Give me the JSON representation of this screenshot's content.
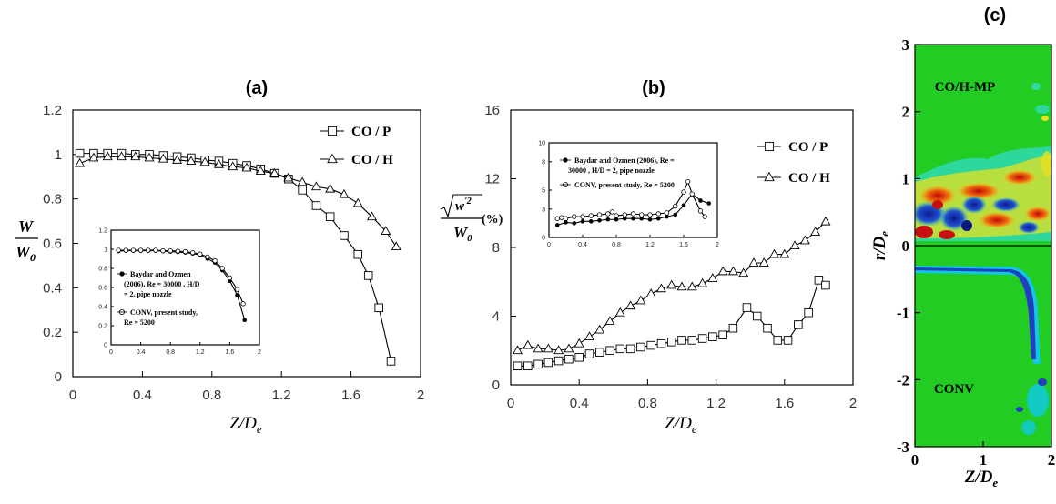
{
  "panels": {
    "a": "(a)",
    "b": "(b)",
    "c": "(c)"
  },
  "chart_data": [
    {
      "type": "line",
      "title": "(a)",
      "xlabel": "Z/De",
      "ylabel": "W/W0",
      "xlim": [
        0,
        2
      ],
      "ylim": [
        0,
        1.2
      ],
      "xticks": [
        "0",
        "0.4",
        "0.8",
        "1.2",
        "1.6",
        "2"
      ],
      "yticks": [
        "0",
        "0.2",
        "0.4",
        "0.6",
        "0.8",
        "1",
        "1.2"
      ],
      "legend_position": "top-right",
      "series": [
        {
          "name": "CO / P",
          "marker": "square",
          "x": [
            0.04,
            0.12,
            0.2,
            0.28,
            0.36,
            0.44,
            0.52,
            0.6,
            0.68,
            0.76,
            0.84,
            0.92,
            1.0,
            1.08,
            1.16,
            1.24,
            1.32,
            1.4,
            1.48,
            1.56,
            1.64,
            1.7,
            1.76,
            1.83
          ],
          "y": [
            1.005,
            1.005,
            1.005,
            1.005,
            1.0,
            1.0,
            0.995,
            0.99,
            0.985,
            0.975,
            0.97,
            0.96,
            0.95,
            0.935,
            0.915,
            0.89,
            0.84,
            0.77,
            0.72,
            0.635,
            0.55,
            0.455,
            0.31,
            0.07
          ]
        },
        {
          "name": "CO / H",
          "marker": "triangle",
          "x": [
            0.04,
            0.12,
            0.2,
            0.28,
            0.36,
            0.44,
            0.52,
            0.6,
            0.68,
            0.76,
            0.84,
            0.92,
            1.0,
            1.08,
            1.16,
            1.24,
            1.32,
            1.4,
            1.48,
            1.56,
            1.64,
            1.72,
            1.8,
            1.86
          ],
          "y": [
            0.96,
            0.985,
            0.99,
            0.99,
            0.99,
            0.985,
            0.98,
            0.975,
            0.97,
            0.965,
            0.955,
            0.945,
            0.94,
            0.925,
            0.915,
            0.895,
            0.875,
            0.855,
            0.845,
            0.82,
            0.78,
            0.72,
            0.655,
            0.585
          ]
        }
      ],
      "inset": {
        "xlim": [
          0,
          2
        ],
        "ylim": [
          0,
          1.2
        ],
        "xticks": [
          "0",
          "0.4",
          "0.8",
          "1.2",
          "1.6",
          "2"
        ],
        "yticks": [
          "0",
          "0.2",
          "0.4",
          "0.6",
          "0.8",
          "1",
          "1.2"
        ],
        "series": [
          {
            "name": "Baydar and Ozmen (2006), Re = 30000 ,  H/D = 2, pipe nozzle",
            "marker": "filled-circle",
            "x": [
              0.1,
              0.2,
              0.3,
              0.4,
              0.5,
              0.6,
              0.7,
              0.8,
              0.9,
              1.0,
              1.1,
              1.2,
              1.3,
              1.4,
              1.5,
              1.6,
              1.7,
              1.8
            ],
            "y": [
              0.98,
              0.985,
              0.985,
              0.985,
              0.985,
              0.985,
              0.98,
              0.975,
              0.97,
              0.965,
              0.955,
              0.94,
              0.9,
              0.86,
              0.78,
              0.67,
              0.52,
              0.26
            ]
          },
          {
            "name": "CONV, present study, Re = 5200",
            "marker": "open-circle",
            "x": [
              0.1,
              0.2,
              0.3,
              0.4,
              0.5,
              0.6,
              0.7,
              0.8,
              0.9,
              1.0,
              1.1,
              1.2,
              1.3,
              1.4,
              1.5,
              1.6,
              1.7,
              1.78
            ],
            "y": [
              0.99,
              0.99,
              0.99,
              0.99,
              0.99,
              0.99,
              0.985,
              0.985,
              0.98,
              0.975,
              0.965,
              0.95,
              0.92,
              0.88,
              0.8,
              0.7,
              0.58,
              0.43
            ]
          }
        ]
      }
    },
    {
      "type": "line",
      "title": "(b)",
      "xlabel": "Z/De",
      "ylabel": "√w'² / W0 (%)",
      "xlim": [
        0,
        2
      ],
      "ylim": [
        0,
        16
      ],
      "xticks": [
        "0",
        "0.4",
        "0.8",
        "1.2",
        "1.6",
        "2"
      ],
      "yticks": [
        "0",
        "4",
        "8",
        "12",
        "16"
      ],
      "legend_position": "right",
      "series": [
        {
          "name": "CO / P",
          "marker": "square",
          "x": [
            0.04,
            0.1,
            0.16,
            0.22,
            0.28,
            0.34,
            0.4,
            0.46,
            0.52,
            0.58,
            0.64,
            0.7,
            0.76,
            0.82,
            0.88,
            0.94,
            1.0,
            1.06,
            1.12,
            1.18,
            1.24,
            1.3,
            1.38,
            1.44,
            1.5,
            1.56,
            1.62,
            1.68,
            1.74,
            1.8,
            1.84
          ],
          "y": [
            1.1,
            1.1,
            1.2,
            1.3,
            1.4,
            1.5,
            1.6,
            1.8,
            1.9,
            2.0,
            2.1,
            2.1,
            2.2,
            2.3,
            2.4,
            2.5,
            2.6,
            2.6,
            2.7,
            2.8,
            2.9,
            3.3,
            4.5,
            4.0,
            3.3,
            2.6,
            2.6,
            3.5,
            4.2,
            6.1,
            5.8
          ]
        },
        {
          "name": "CO / H",
          "marker": "triangle",
          "x": [
            0.04,
            0.1,
            0.16,
            0.22,
            0.28,
            0.34,
            0.4,
            0.46,
            0.52,
            0.58,
            0.64,
            0.7,
            0.76,
            0.82,
            0.88,
            0.94,
            1.0,
            1.06,
            1.12,
            1.18,
            1.24,
            1.3,
            1.36,
            1.42,
            1.48,
            1.54,
            1.6,
            1.66,
            1.72,
            1.78,
            1.84
          ],
          "y": [
            2.0,
            2.3,
            2.1,
            2.1,
            2.0,
            2.1,
            2.4,
            2.8,
            3.2,
            3.7,
            4.2,
            4.6,
            4.9,
            5.3,
            5.6,
            5.8,
            5.7,
            5.7,
            5.9,
            6.2,
            6.6,
            6.6,
            6.5,
            7.1,
            7.1,
            7.6,
            7.6,
            8.1,
            8.4,
            8.9,
            9.5
          ]
        }
      ],
      "inset": {
        "xlim": [
          0,
          2
        ],
        "ylim": [
          0,
          10
        ],
        "xticks": [
          "0",
          "0.4",
          "0.8",
          "1.2",
          "1.6",
          "2"
        ],
        "yticks": [
          "0",
          "3",
          "5",
          "8",
          "10"
        ],
        "series": [
          {
            "name": "Baydar and Ozmen (2006), Re = 30000 ,  H/D = 2, pipe nozzle",
            "marker": "filled-circle",
            "x": [
              0.1,
              0.2,
              0.3,
              0.4,
              0.5,
              0.6,
              0.7,
              0.8,
              0.9,
              1.0,
              1.1,
              1.2,
              1.3,
              1.4,
              1.5,
              1.6,
              1.7,
              1.8,
              1.9
            ],
            "y": [
              1.3,
              1.6,
              1.5,
              1.7,
              1.7,
              1.8,
              1.9,
              1.9,
              2.0,
              2.0,
              2.0,
              1.9,
              2.0,
              2.2,
              2.4,
              3.4,
              4.6,
              3.9,
              3.6
            ]
          },
          {
            "name": "CONV, present study, Re = 5200",
            "marker": "open-circle",
            "x": [
              0.1,
              0.15,
              0.2,
              0.3,
              0.4,
              0.5,
              0.6,
              0.7,
              0.75,
              0.8,
              0.9,
              1.0,
              1.1,
              1.2,
              1.3,
              1.4,
              1.5,
              1.6,
              1.65,
              1.7,
              1.8,
              1.85
            ],
            "y": [
              2.0,
              2.1,
              2.0,
              2.2,
              2.2,
              2.3,
              2.4,
              2.5,
              2.7,
              2.3,
              2.4,
              2.5,
              2.4,
              2.4,
              2.5,
              2.6,
              3.3,
              4.8,
              5.9,
              4.6,
              2.8,
              2.2
            ]
          }
        ]
      }
    }
  ],
  "contour": {
    "title": "(c)",
    "xlabel": "Z/De",
    "ylabel": "r/De",
    "xticks": [
      "0",
      "1",
      "2"
    ],
    "yticks": [
      "-3",
      "-2",
      "-1",
      "0",
      "1",
      "2",
      "3"
    ],
    "top_label": "CO/H-MP",
    "bottom_label": "CONV",
    "colors": {
      "background": "#22cc22",
      "cyan": "#11c8e0",
      "blue": "#1838b0",
      "yellow": "#e8e020",
      "red": "#dd2010",
      "orange": "#f08010"
    }
  }
}
